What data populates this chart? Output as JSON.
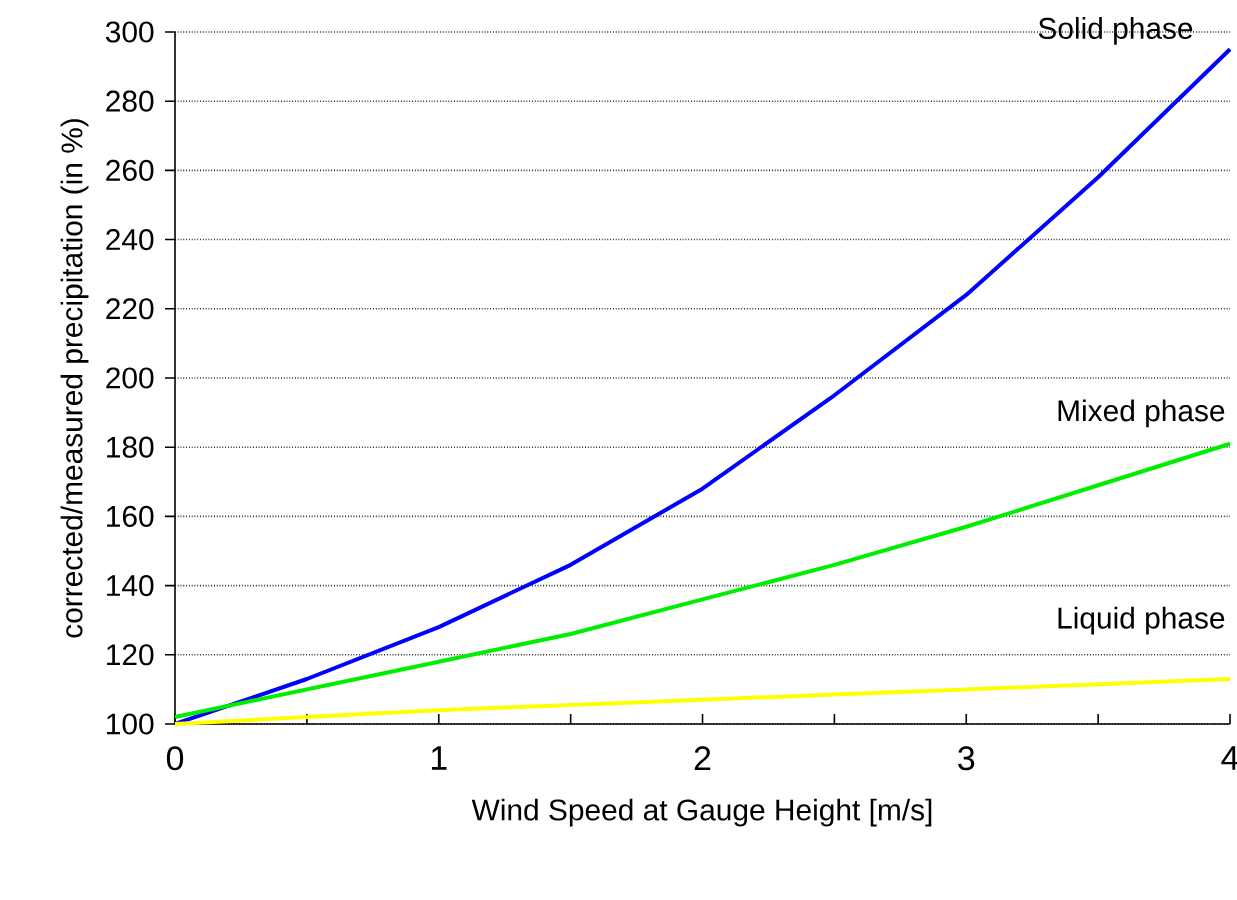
{
  "chart_data": {
    "type": "line",
    "xlabel": "Wind Speed at Gauge Height [m/s]",
    "ylabel": "corrected/measured precipitation (in %)",
    "x": [
      0,
      0.5,
      1,
      1.5,
      2,
      2.5,
      3,
      3.5,
      4
    ],
    "series": [
      {
        "name": "Solid phase",
        "color": "#0000ff",
        "values": [
          100,
          113,
          128,
          146,
          168,
          195,
          224,
          258,
          295
        ]
      },
      {
        "name": "Mixed phase",
        "color": "#00ee00",
        "values": [
          102,
          110,
          118,
          126,
          136,
          146,
          157,
          169,
          181
        ]
      },
      {
        "name": "Liquid phase",
        "color": "#ffff00",
        "values": [
          100,
          102,
          104,
          105.5,
          107,
          108.5,
          110,
          111.5,
          113
        ]
      }
    ],
    "xlim": [
      0,
      4
    ],
    "ylim": [
      100,
      300
    ],
    "xticks": [
      0,
      {
        "value": 0.5,
        "label": null
      },
      1,
      {
        "value": 1.5,
        "label": null
      },
      2,
      {
        "value": 2.5,
        "label": null
      },
      3,
      {
        "value": 3.5,
        "label": null
      },
      4
    ],
    "yticks": [
      100,
      120,
      140,
      160,
      180,
      200,
      220,
      240,
      260,
      280,
      300
    ],
    "grid": "y",
    "marker": "none",
    "line_style": "solid"
  }
}
